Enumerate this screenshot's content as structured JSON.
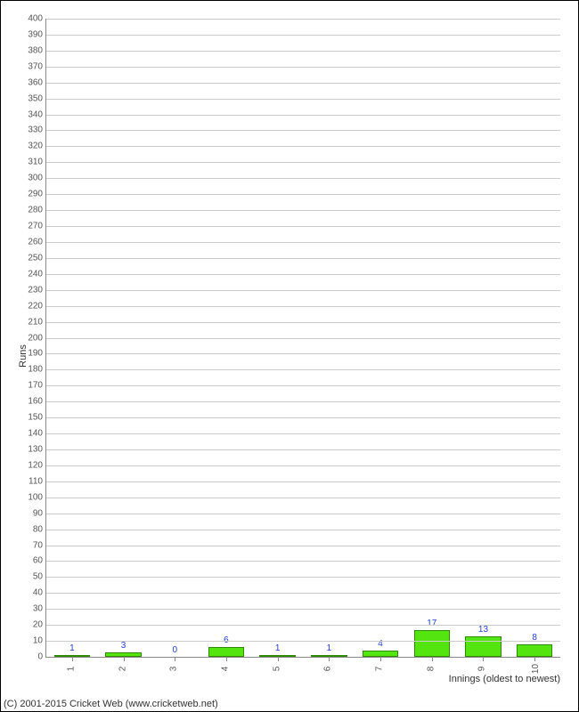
{
  "chart": {
    "type": "bar",
    "ylabel": "Runs",
    "xlabel": "Innings (oldest to newest)",
    "ylim": [
      0,
      400
    ],
    "ytick_step": 10,
    "background_color": "#ffffff",
    "grid_color": "#cccccc",
    "axis_color": "#888888",
    "bar_color": "#54e510",
    "bar_border_color": "#2e8b00",
    "value_label_color": "#2040d0",
    "tick_label_color": "#555555",
    "tick_label_fontsize": 10,
    "axis_label_fontsize": 11,
    "bar_width": 0.7,
    "categories": [
      "1",
      "2",
      "3",
      "4",
      "5",
      "6",
      "7",
      "8",
      "9",
      "10"
    ],
    "values": [
      1,
      3,
      0,
      6,
      1,
      1,
      4,
      17,
      13,
      8
    ]
  },
  "copyright": "(C) 2001-2015 Cricket Web (www.cricketweb.net)"
}
